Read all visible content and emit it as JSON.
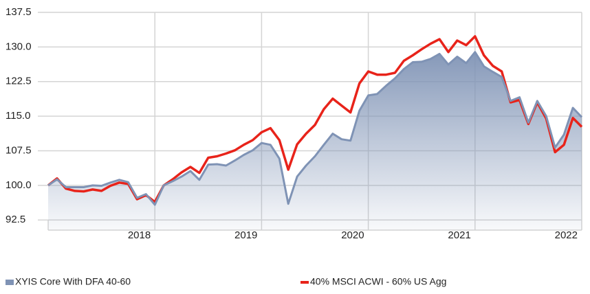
{
  "chart_data": {
    "type": "line",
    "categories": [
      null,
      null,
      null,
      null,
      null,
      null,
      null,
      null,
      null,
      null,
      null,
      null,
      "2018",
      null,
      null,
      null,
      null,
      null,
      null,
      null,
      null,
      null,
      null,
      null,
      "2019",
      null,
      null,
      null,
      null,
      null,
      null,
      null,
      null,
      null,
      null,
      null,
      "2020",
      null,
      null,
      null,
      null,
      null,
      null,
      null,
      null,
      null,
      null,
      null,
      "2021",
      null,
      null,
      null,
      null,
      null,
      null,
      null,
      null,
      null,
      null,
      null,
      "2022"
    ],
    "series": [
      {
        "name": "XYIS Core With DFA 40-60",
        "color": "#7f93b5",
        "area": true,
        "values": [
          100.0,
          101.3,
          99.6,
          99.6,
          99.6,
          100.0,
          99.9,
          100.6,
          101.2,
          100.7,
          97.3,
          98.1,
          95.8,
          100.0,
          100.9,
          101.9,
          103.1,
          101.2,
          104.5,
          104.6,
          104.3,
          105.4,
          106.6,
          107.6,
          109.2,
          108.8,
          105.8,
          96.0,
          101.9,
          104.3,
          106.3,
          108.8,
          111.2,
          110.0,
          109.7,
          116.2,
          119.5,
          119.8,
          121.6,
          123.2,
          125.2,
          126.7,
          126.8,
          127.4,
          128.5,
          126.2,
          127.9,
          126.5,
          128.9,
          125.8,
          124.6,
          123.5,
          118.3,
          119.1,
          113.6,
          118.3,
          115.0,
          108.2,
          111.0,
          116.8,
          114.8
        ]
      },
      {
        "name": "40% MSCI ACWI - 60% US Agg",
        "color": "#e8231a",
        "area": false,
        "values": [
          100.0,
          101.5,
          99.3,
          98.8,
          98.7,
          99.1,
          98.8,
          99.9,
          100.6,
          100.3,
          97.0,
          97.9,
          96.4,
          100.0,
          101.3,
          102.8,
          104.0,
          102.7,
          106.0,
          106.3,
          106.9,
          107.6,
          108.8,
          109.8,
          111.5,
          112.4,
          109.8,
          103.4,
          108.9,
          111.2,
          113.1,
          116.5,
          118.8,
          117.3,
          115.8,
          122.1,
          124.7,
          124.0,
          124.0,
          124.4,
          127.0,
          128.2,
          129.5,
          130.7,
          131.7,
          128.9,
          131.4,
          130.4,
          132.3,
          128.2,
          125.9,
          124.7,
          118.0,
          118.5,
          113.3,
          118.0,
          114.5,
          107.2,
          108.8,
          114.6,
          112.7
        ]
      }
    ],
    "ylim": [
      90.3,
      137.5
    ],
    "yticks": [
      92.5,
      {
        "value": 100,
        "label": "100.0"
      },
      107.5,
      {
        "value": 115,
        "label": "115.0"
      },
      122.5,
      {
        "value": 130,
        "label": "130.0"
      },
      137.5
    ],
    "grid": true,
    "legend": "bottom"
  }
}
